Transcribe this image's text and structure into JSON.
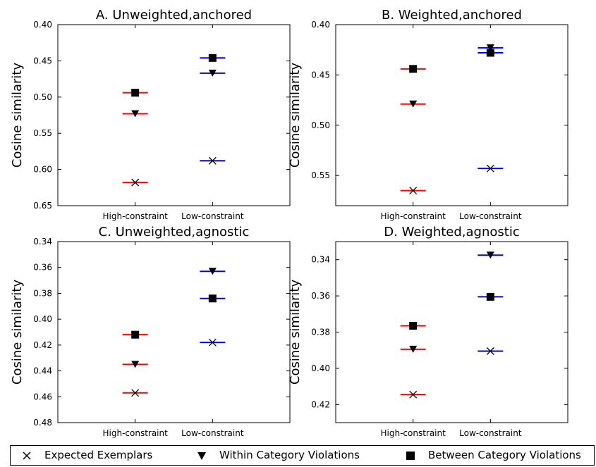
{
  "chart_data": [
    {
      "type": "scatter",
      "title": "A. Unweighted,anchored",
      "ylabel": "Cosine similarity",
      "categories": [
        "High-constraint",
        "Low-constraint"
      ],
      "ylim": [
        0.4,
        0.65
      ],
      "y_inverted": true,
      "yticks": [
        "0.40",
        "0.45",
        "0.50",
        "0.55",
        "0.60",
        "0.65"
      ],
      "series": [
        {
          "name": "Expected Exemplars",
          "marker": "x",
          "values": [
            0.618,
            0.588
          ]
        },
        {
          "name": "Within Category Violations",
          "marker": "triangle-down",
          "values": [
            0.523,
            0.467
          ]
        },
        {
          "name": "Between Category Violations",
          "marker": "square",
          "values": [
            0.494,
            0.446
          ]
        }
      ]
    },
    {
      "type": "scatter",
      "title": "B. Weighted,anchored",
      "ylabel": "Cosine similarity",
      "categories": [
        "High-constraint",
        "Low-constraint"
      ],
      "ylim": [
        0.4,
        0.58
      ],
      "y_inverted": true,
      "yticks": [
        "0.40",
        "0.45",
        "0.50",
        "0.55"
      ],
      "series": [
        {
          "name": "Expected Exemplars",
          "marker": "x",
          "values": [
            0.565,
            0.543
          ]
        },
        {
          "name": "Within Category Violations",
          "marker": "triangle-down",
          "values": [
            0.479,
            0.423
          ]
        },
        {
          "name": "Between Category Violations",
          "marker": "square",
          "values": [
            0.444,
            0.428
          ]
        }
      ]
    },
    {
      "type": "scatter",
      "title": "C. Unweighted,agnostic",
      "ylabel": "Cosine similarity",
      "categories": [
        "High-constraint",
        "Low-constraint"
      ],
      "ylim": [
        0.34,
        0.48
      ],
      "y_inverted": true,
      "yticks": [
        "0.34",
        "0.36",
        "0.38",
        "0.40",
        "0.42",
        "0.44",
        "0.46",
        "0.48"
      ],
      "series": [
        {
          "name": "Expected Exemplars",
          "marker": "x",
          "values": [
            0.457,
            0.418
          ]
        },
        {
          "name": "Within Category Violations",
          "marker": "triangle-down",
          "values": [
            0.435,
            0.363
          ]
        },
        {
          "name": "Between Category Violations",
          "marker": "square",
          "values": [
            0.412,
            0.384
          ]
        }
      ]
    },
    {
      "type": "scatter",
      "title": "D. Weighted,agnostic",
      "ylabel": "Cosine similarity",
      "categories": [
        "High-constraint",
        "Low-constraint"
      ],
      "ylim": [
        0.33,
        0.43
      ],
      "y_inverted": true,
      "yticks": [
        "0.34",
        "0.36",
        "0.38",
        "0.40",
        "0.42"
      ],
      "series": [
        {
          "name": "Expected Exemplars",
          "marker": "x",
          "values": [
            0.4145,
            0.3905
          ]
        },
        {
          "name": "Within Category Violations",
          "marker": "triangle-down",
          "values": [
            0.3895,
            0.3375
          ]
        },
        {
          "name": "Between Category Violations",
          "marker": "square",
          "values": [
            0.3765,
            0.3605
          ]
        }
      ]
    }
  ],
  "legend": {
    "items": [
      {
        "label": "Expected Exemplars",
        "marker": "x"
      },
      {
        "label": "Within Category Violations",
        "marker": "triangle-down"
      },
      {
        "label": "Between Category Violations",
        "marker": "square"
      }
    ]
  },
  "colors": {
    "high_constraint": "#ff0000",
    "low_constraint": "#0000ff",
    "marker": "#000000",
    "axis": "#000000"
  }
}
